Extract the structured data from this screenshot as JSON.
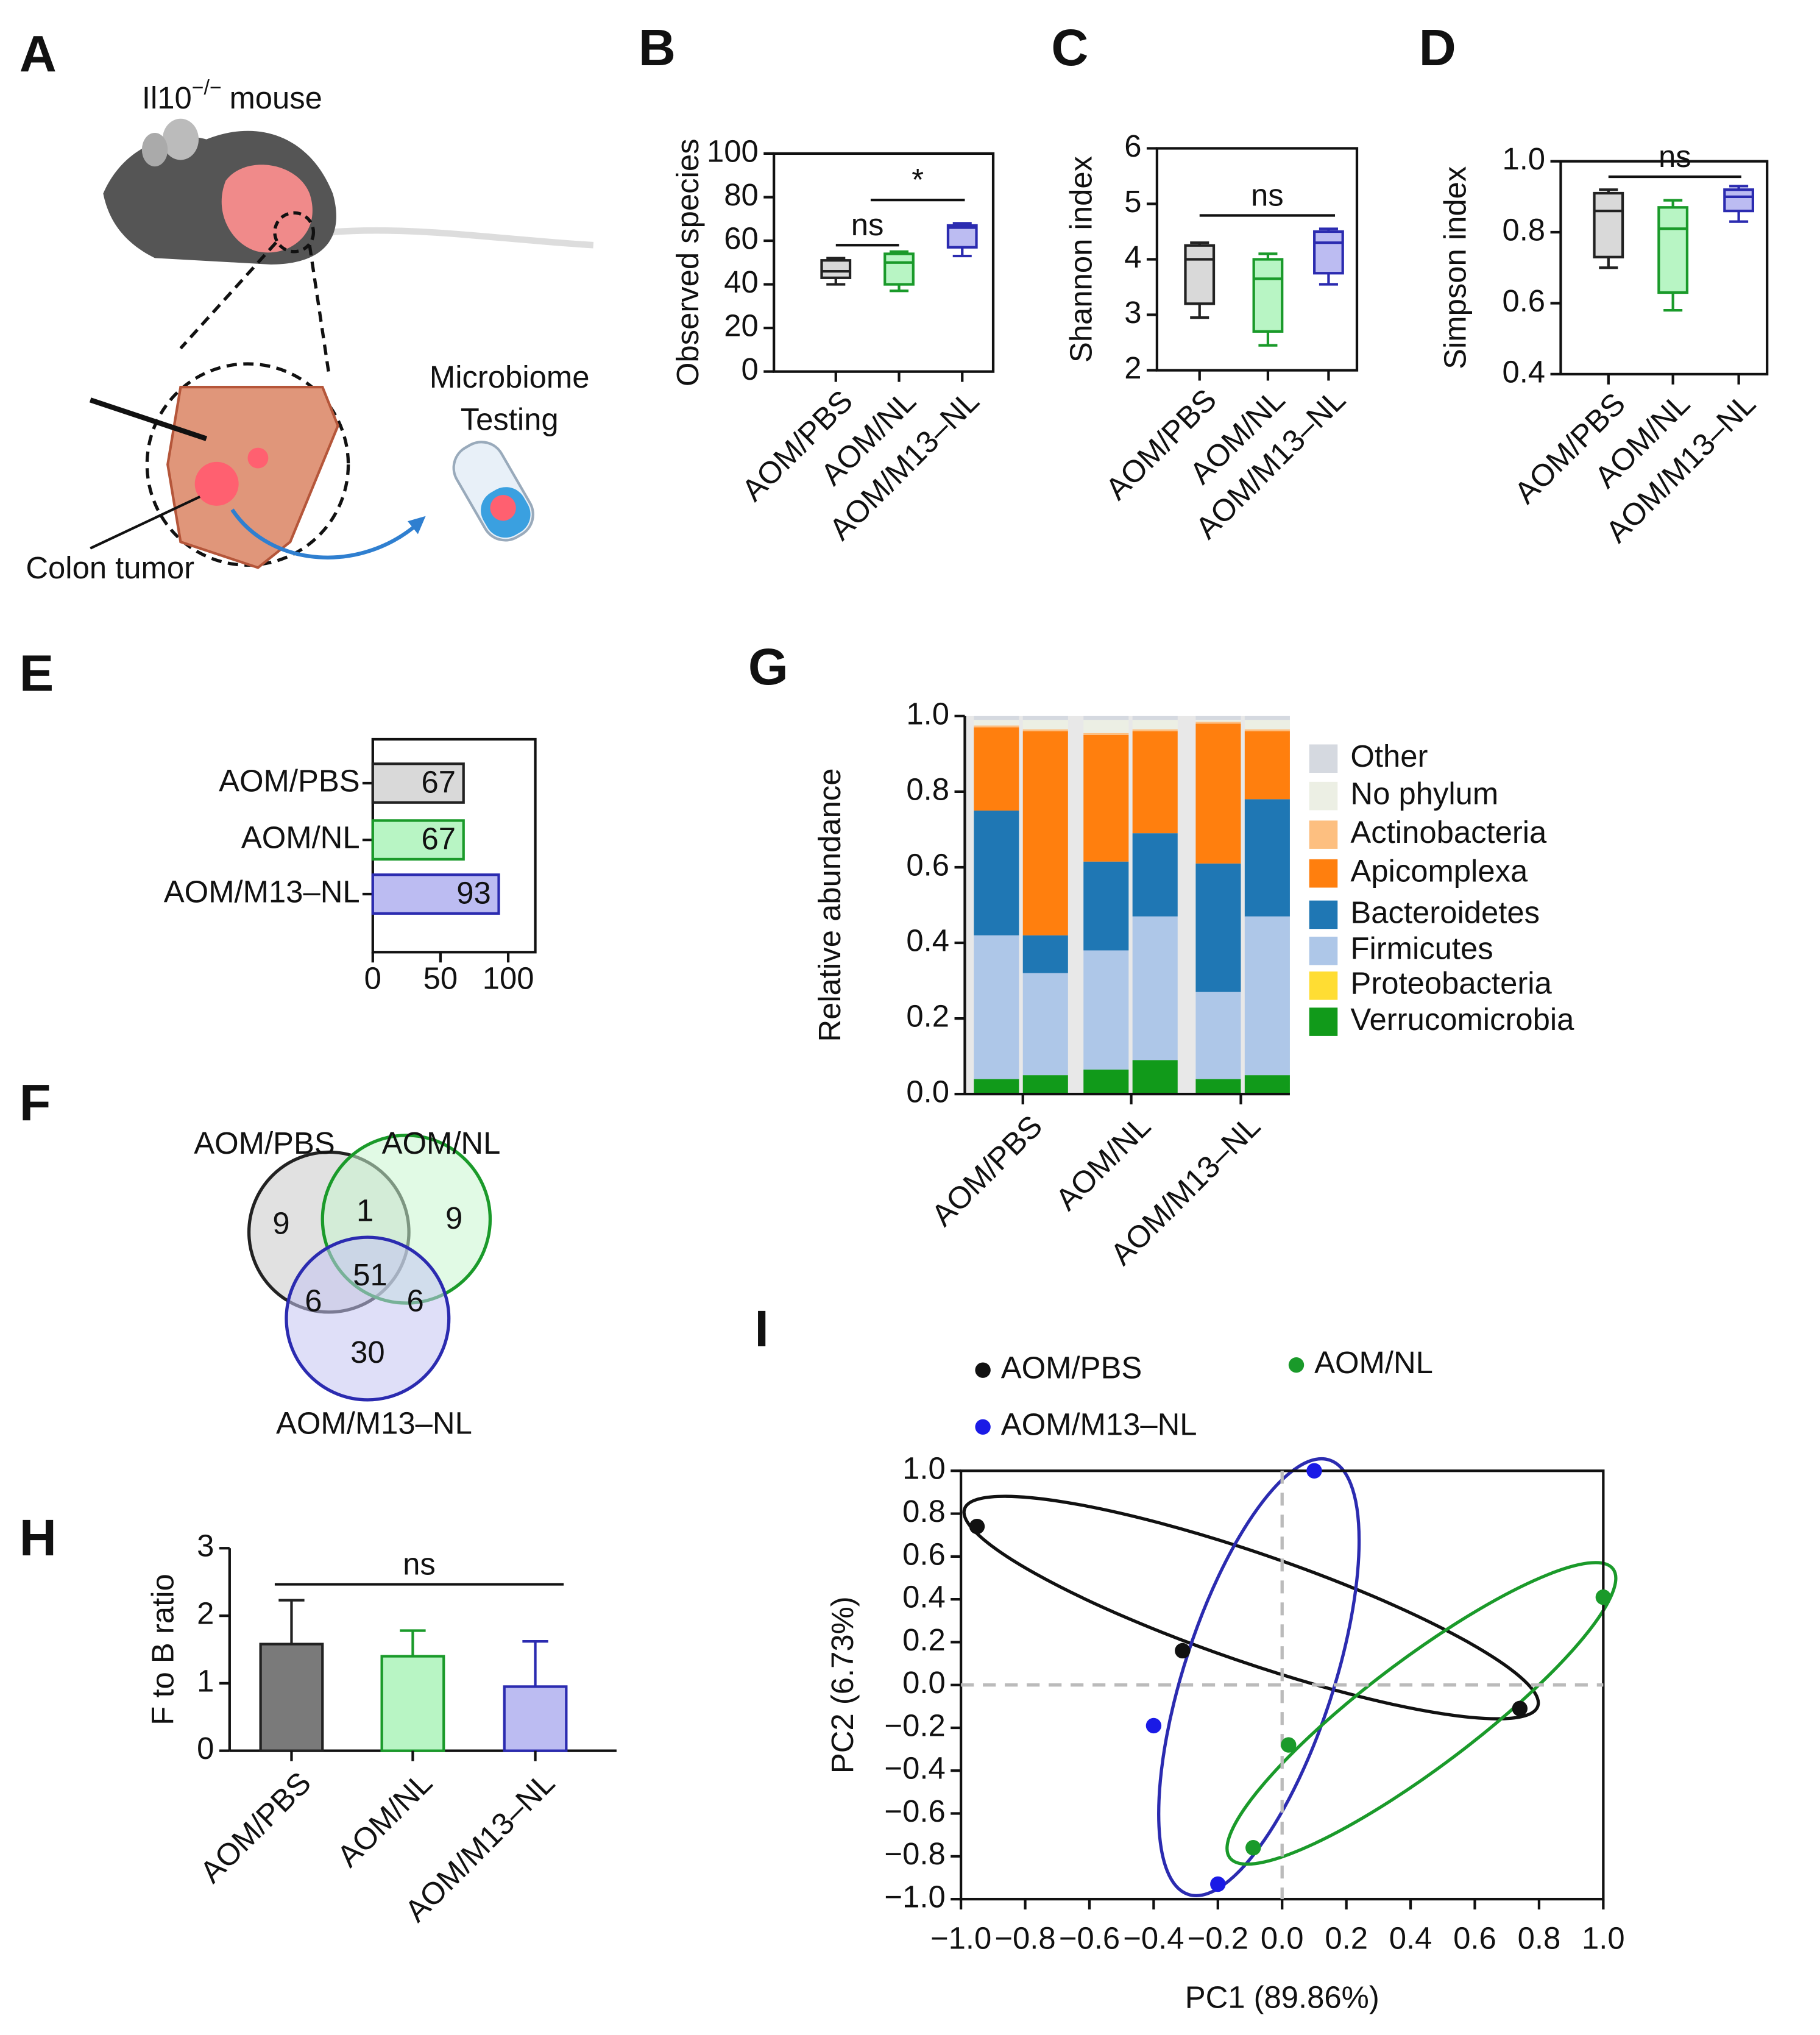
{
  "illustration": {
    "panel": "A",
    "title": "Il10",
    "title_superscript": "−/−",
    "title_suffix": "mouse",
    "tube_label": [
      "Microbiome",
      "Testing"
    ],
    "tumor_label": "Colon tumor"
  },
  "chart_data": [
    {
      "type": "box",
      "panel": "B",
      "y_label": "Observed species",
      "categories": [
        "AOM/PBS",
        "AOM/NL",
        "AOM/M13–NL"
      ],
      "min": [
        40,
        37,
        53
      ],
      "q1": [
        43,
        40,
        57
      ],
      "median": [
        46,
        50,
        66
      ],
      "q3": [
        51,
        54,
        67
      ],
      "max": [
        52,
        55,
        68
      ],
      "colors": [
        "#d9d9d9",
        "#b8f5c4",
        "#bcbcf2"
      ],
      "edge_colors": [
        "#222222",
        "#1a9a2a",
        "#2b2bb0"
      ],
      "ylim": [
        0,
        100
      ],
      "yticks": [
        0,
        20,
        40,
        60,
        80,
        100
      ],
      "annotations": [
        "ns",
        "*"
      ]
    },
    {
      "type": "box",
      "panel": "C",
      "y_label": "Shannon index",
      "categories": [
        "AOM/PBS",
        "AOM/NL",
        "AOM/M13–NL"
      ],
      "min": [
        2.95,
        2.45,
        3.55
      ],
      "q1": [
        3.2,
        2.7,
        3.75
      ],
      "median": [
        4.0,
        3.65,
        4.3
      ],
      "q3": [
        4.25,
        4.0,
        4.5
      ],
      "max": [
        4.3,
        4.1,
        4.55
      ],
      "colors": [
        "#d9d9d9",
        "#b8f5c4",
        "#bcbcf2"
      ],
      "edge_colors": [
        "#222222",
        "#1a9a2a",
        "#2b2bb0"
      ],
      "ylim": [
        2,
        6
      ],
      "yticks": [
        2,
        3,
        4,
        5,
        6
      ],
      "annotations": [
        "ns"
      ]
    },
    {
      "type": "box",
      "panel": "D",
      "y_label": "Simpson index",
      "categories": [
        "AOM/PBS",
        "AOM/NL",
        "AOM/M13–NL"
      ],
      "min": [
        0.7,
        0.58,
        0.83
      ],
      "q1": [
        0.73,
        0.63,
        0.86
      ],
      "median": [
        0.86,
        0.81,
        0.9
      ],
      "q3": [
        0.91,
        0.87,
        0.92
      ],
      "max": [
        0.92,
        0.89,
        0.93
      ],
      "colors": [
        "#d9d9d9",
        "#b8f5c4",
        "#bcbcf2"
      ],
      "edge_colors": [
        "#222222",
        "#1a9a2a",
        "#2b2bb0"
      ],
      "ylim": [
        0.4,
        1.0
      ],
      "yticks": [
        0.4,
        0.6,
        0.8,
        {
          "value": 1.0,
          "label": "1.0"
        }
      ],
      "annotations": [
        "ns"
      ]
    },
    {
      "type": "hbar",
      "panel": "E",
      "categories": [
        "AOM/PBS",
        "AOM/NL",
        "AOM/M13–NL"
      ],
      "values": [
        67,
        67,
        93
      ],
      "colors": [
        "#d9d9d9",
        "#b8f5c4",
        "#bcbcf2"
      ],
      "edge_colors": [
        "#222222",
        "#1a9a2a",
        "#2b2bb0"
      ],
      "xlim": [
        0,
        120
      ],
      "xticks": [
        0,
        50,
        100
      ]
    },
    {
      "type": "venn",
      "panel": "F",
      "sets": [
        {
          "name": "AOM/PBS",
          "color": "#222222",
          "fill": "#c8c8c8"
        },
        {
          "name": "AOM/NL",
          "color": "#1a9a2a",
          "fill": "#c8f5cf"
        },
        {
          "name": "AOM/M13–NL",
          "color": "#2b2bb0",
          "fill": "#c4c4f2"
        }
      ],
      "regions": [
        9,
        1,
        9,
        51,
        6,
        6,
        30
      ]
    },
    {
      "type": "stacked_bar",
      "panel": "G",
      "y_label": "Relative abundance",
      "groups": [
        "AOM/PBS",
        "AOM/NL",
        "AOM/M13–NL"
      ],
      "series": [
        {
          "name": "Other",
          "color": "#d5d9e0",
          "values": [
            0.01,
            0.01,
            0.01,
            0.01,
            0.01,
            0.01
          ]
        },
        {
          "name": "No phylum",
          "color": "#ecefe4",
          "values": [
            0.015,
            0.025,
            0.035,
            0.025,
            0.005,
            0.025
          ]
        },
        {
          "name": "Actinobacteria",
          "color": "#fdbf80",
          "values": [
            0.005,
            0.005,
            0.005,
            0.005,
            0.005,
            0.005
          ]
        },
        {
          "name": "Apicomplexa",
          "color": "#ff7f0e",
          "values": [
            0.22,
            0.54,
            0.335,
            0.27,
            0.37,
            0.18
          ]
        },
        {
          "name": "Bacteroidetes",
          "color": "#1f77b4",
          "values": [
            0.33,
            0.1,
            0.235,
            0.22,
            0.34,
            0.31
          ]
        },
        {
          "name": "Firmicutes",
          "color": "#aec7e8",
          "values": [
            0.38,
            0.27,
            0.315,
            0.38,
            0.23,
            0.42
          ]
        },
        {
          "name": "Proteobacteria",
          "color": "#ffdd33",
          "values": [
            0,
            0,
            0,
            0,
            0,
            0
          ]
        },
        {
          "name": "Verrucomicrobia",
          "color": "#119a1a",
          "values": [
            0.04,
            0.05,
            0.065,
            0.09,
            0.04,
            0.05
          ]
        }
      ],
      "ylim": [
        0,
        1.0
      ],
      "yticks": [
        {
          "value": 0,
          "label": "0.0"
        },
        0.2,
        0.4,
        0.6,
        0.8,
        {
          "value": 1.0,
          "label": "1.0"
        }
      ]
    },
    {
      "type": "bar",
      "panel": "H",
      "y_label": "F to B ratio",
      "categories": [
        "AOM/PBS",
        "AOM/NL",
        "AOM/M13–NL"
      ],
      "values": [
        1.58,
        1.4,
        0.95
      ],
      "errors": [
        0.65,
        0.38,
        0.67
      ],
      "colors": [
        "#7a7a7a",
        "#b8f5c4",
        "#bcbcf2"
      ],
      "edge_colors": [
        "#222222",
        "#1a9a2a",
        "#2b2bb0"
      ],
      "ylim": [
        0,
        3
      ],
      "yticks": [
        0,
        1,
        2,
        3
      ],
      "annotations": [
        "ns"
      ]
    },
    {
      "type": "scatter",
      "panel": "I",
      "x_label": "PC1 (89.86%)",
      "y_label": "PC2 (6.73%)",
      "series": [
        {
          "name": "AOM/PBS",
          "color": "#111111",
          "x": [
            -0.95,
            -0.31,
            0.74
          ],
          "values": [
            0.74,
            0.16,
            -0.11
          ]
        },
        {
          "name": "AOM/NL",
          "color": "#1a9a2a",
          "x": [
            1.0,
            0.02,
            -0.09
          ],
          "values": [
            0.41,
            -0.28,
            -0.76
          ]
        },
        {
          "name": "AOM/M13–NL",
          "color": "#1a1ae6",
          "x": [
            0.1,
            -0.4,
            -0.2
          ],
          "values": [
            1.0,
            -0.19,
            -0.93
          ]
        }
      ],
      "xlim": [
        -1.0,
        1.0
      ],
      "ylim": [
        -1.0,
        1.0
      ],
      "xticks": [
        {
          "value": -1.0,
          "label": "−1.0"
        },
        {
          "value": -0.8,
          "label": "−0.8"
        },
        {
          "value": -0.6,
          "label": "−0.6"
        },
        {
          "value": -0.4,
          "label": "−0.4"
        },
        {
          "value": -0.2,
          "label": "−0.2"
        },
        {
          "value": 0,
          "label": "0.0"
        },
        0.2,
        0.4,
        0.6,
        0.8,
        {
          "value": 1.0,
          "label": "1.0"
        }
      ],
      "yticks": [
        {
          "value": -1.0,
          "label": "−1.0"
        },
        {
          "value": -0.8,
          "label": "−0.8"
        },
        {
          "value": -0.6,
          "label": "−0.6"
        },
        {
          "value": -0.4,
          "label": "−0.4"
        },
        {
          "value": -0.2,
          "label": "−0.2"
        },
        {
          "value": 0,
          "label": "0.0"
        },
        0.2,
        0.4,
        0.6,
        0.8,
        {
          "value": 1.0,
          "label": "1.0"
        }
      ]
    }
  ]
}
